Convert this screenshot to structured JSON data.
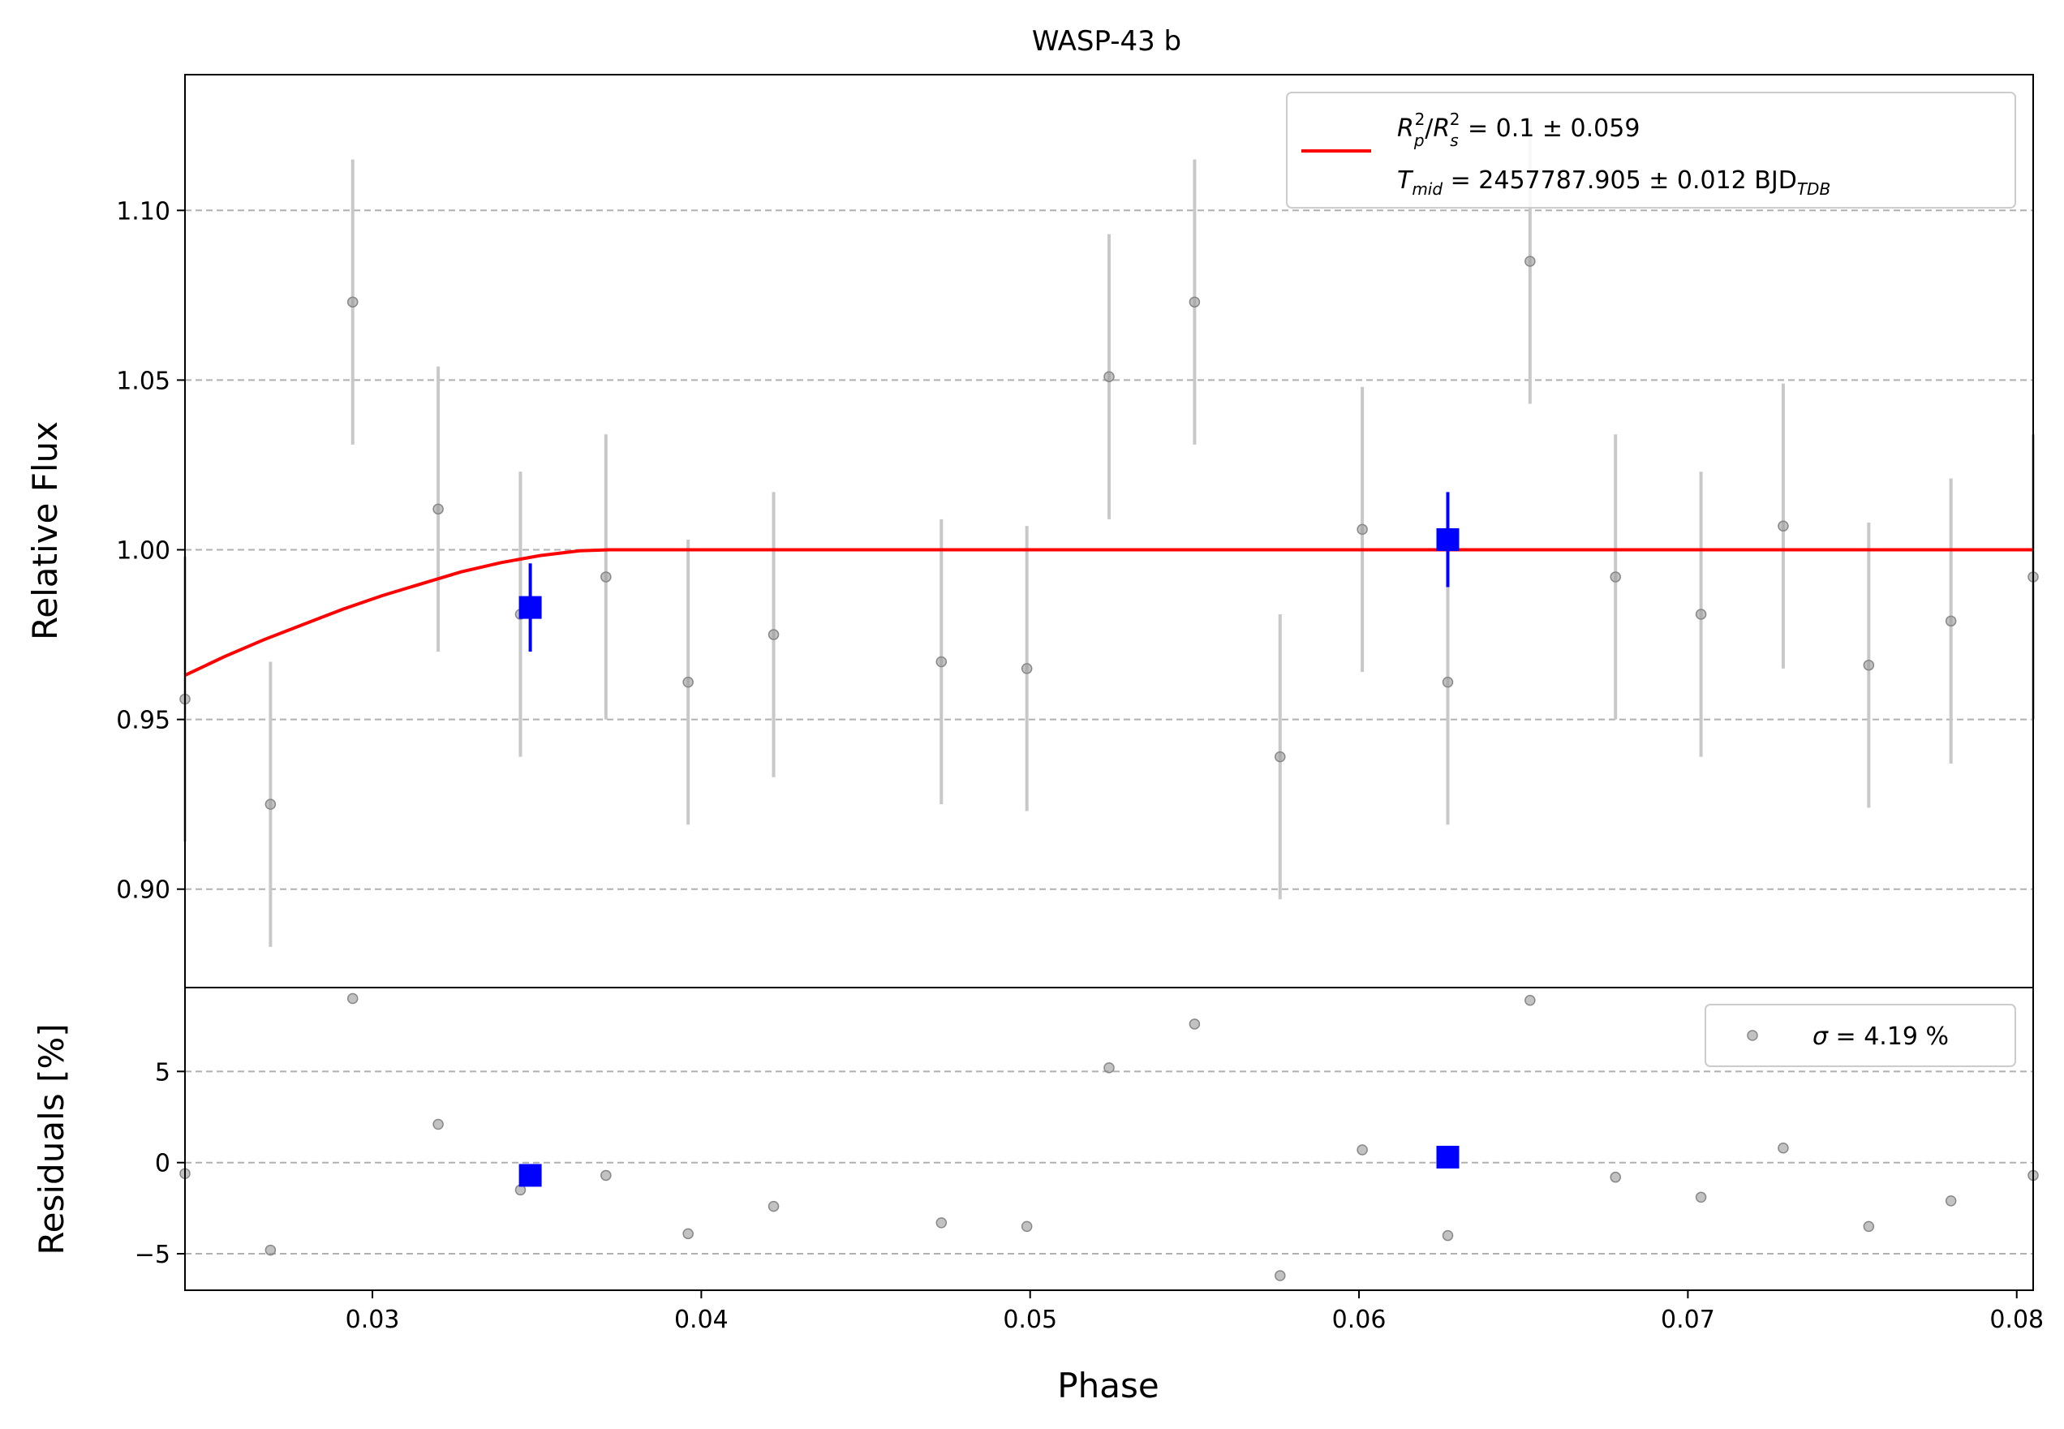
{
  "chart_data": {
    "type": "scatter",
    "title": "WASP-43 b",
    "xlabel": "Phase",
    "xlim": [
      0.0243,
      0.0805
    ],
    "x_ticks": [
      "0.03",
      "0.04",
      "0.05",
      "0.06",
      "0.07",
      "0.08"
    ],
    "x_tick_values": [
      0.03,
      0.04,
      0.05,
      0.06,
      0.07,
      0.08
    ],
    "grid": "horizontal dashed",
    "panels": [
      {
        "id": "flux",
        "ylabel": "Relative Flux",
        "ylim": [
          0.871,
          1.14
        ],
        "y_ticks": [
          "0.90",
          "0.95",
          "1.00",
          "1.05",
          "1.10"
        ],
        "y_tick_values": [
          0.9,
          0.95,
          1.0,
          1.05,
          1.1
        ],
        "legend": {
          "position": "top-right",
          "line1_main": "R",
          "line1_expr": " = 0.1 ± 0.059",
          "line2_main": "T",
          "line2_sub": "mid",
          "line2_expr": " = 2457787.905 ± 0.012 BJD",
          "line2_tail_sub": "TDB"
        },
        "points": {
          "color": "#999999",
          "errorbar_color": "#c8c8c8",
          "x": [
            0.0243,
            0.0269,
            0.0294,
            0.032,
            0.0345,
            0.0371,
            0.0396,
            0.0422,
            0.0473,
            0.0499,
            0.0524,
            0.055,
            0.0576,
            0.0601,
            0.0627,
            0.0652,
            0.0678,
            0.0704,
            0.0729,
            0.0755,
            0.078,
            0.0805
          ],
          "y": [
            0.956,
            0.925,
            1.073,
            1.012,
            0.981,
            0.992,
            0.961,
            0.975,
            0.967,
            0.965,
            1.051,
            1.073,
            0.939,
            1.006,
            0.961,
            1.085,
            0.992,
            0.981,
            1.007,
            0.966,
            0.979,
            0.992
          ],
          "yerr": [
            0.042,
            0.042,
            0.042,
            0.042,
            0.042,
            0.042,
            0.042,
            0.042,
            0.042,
            0.042,
            0.042,
            0.042,
            0.042,
            0.042,
            0.042,
            0.042,
            0.042,
            0.042,
            0.042,
            0.042,
            0.042,
            0.042
          ]
        },
        "binned": {
          "color": "#0000ff",
          "x": [
            0.0348,
            0.0627
          ],
          "y": [
            0.983,
            1.003
          ],
          "yerr": [
            0.013,
            0.014
          ]
        },
        "model": {
          "color": "#ff0000",
          "x": [
            0.0243,
            0.0255,
            0.0267,
            0.0279,
            0.0291,
            0.0303,
            0.0315,
            0.0327,
            0.0339,
            0.0351,
            0.0363,
            0.0372,
            0.0805
          ],
          "y": [
            0.963,
            0.9685,
            0.9735,
            0.978,
            0.9825,
            0.9865,
            0.99,
            0.9935,
            0.9962,
            0.9983,
            0.9997,
            1.0,
            1.0
          ]
        }
      },
      {
        "id": "residuals",
        "ylabel": "Residuals [%]",
        "ylim": [
          -7.0,
          9.6
        ],
        "y_ticks": [
          "−5",
          "0",
          "5"
        ],
        "y_tick_values": [
          -5,
          0,
          5
        ],
        "legend": {
          "position": "top-right",
          "symbol": "σ",
          "text": " = 4.19 %"
        },
        "points": {
          "color": "#999999",
          "x": [
            0.0243,
            0.0269,
            0.0294,
            0.032,
            0.0345,
            0.0371,
            0.0396,
            0.0422,
            0.0473,
            0.0499,
            0.0524,
            0.055,
            0.0576,
            0.0601,
            0.0627,
            0.0652,
            0.0678,
            0.0704,
            0.0729,
            0.0755,
            0.078,
            0.0805
          ],
          "y": [
            -0.6,
            -4.8,
            9.0,
            2.1,
            -1.5,
            -0.7,
            -3.9,
            -2.4,
            -3.3,
            -3.5,
            5.2,
            7.6,
            -6.2,
            0.7,
            -4.0,
            8.9,
            -0.8,
            -1.9,
            0.8,
            -3.5,
            -2.1,
            -0.7
          ]
        },
        "binned": {
          "color": "#0000ff",
          "x": [
            0.0348,
            0.0627
          ],
          "y": [
            -0.7,
            0.3
          ]
        }
      }
    ]
  }
}
